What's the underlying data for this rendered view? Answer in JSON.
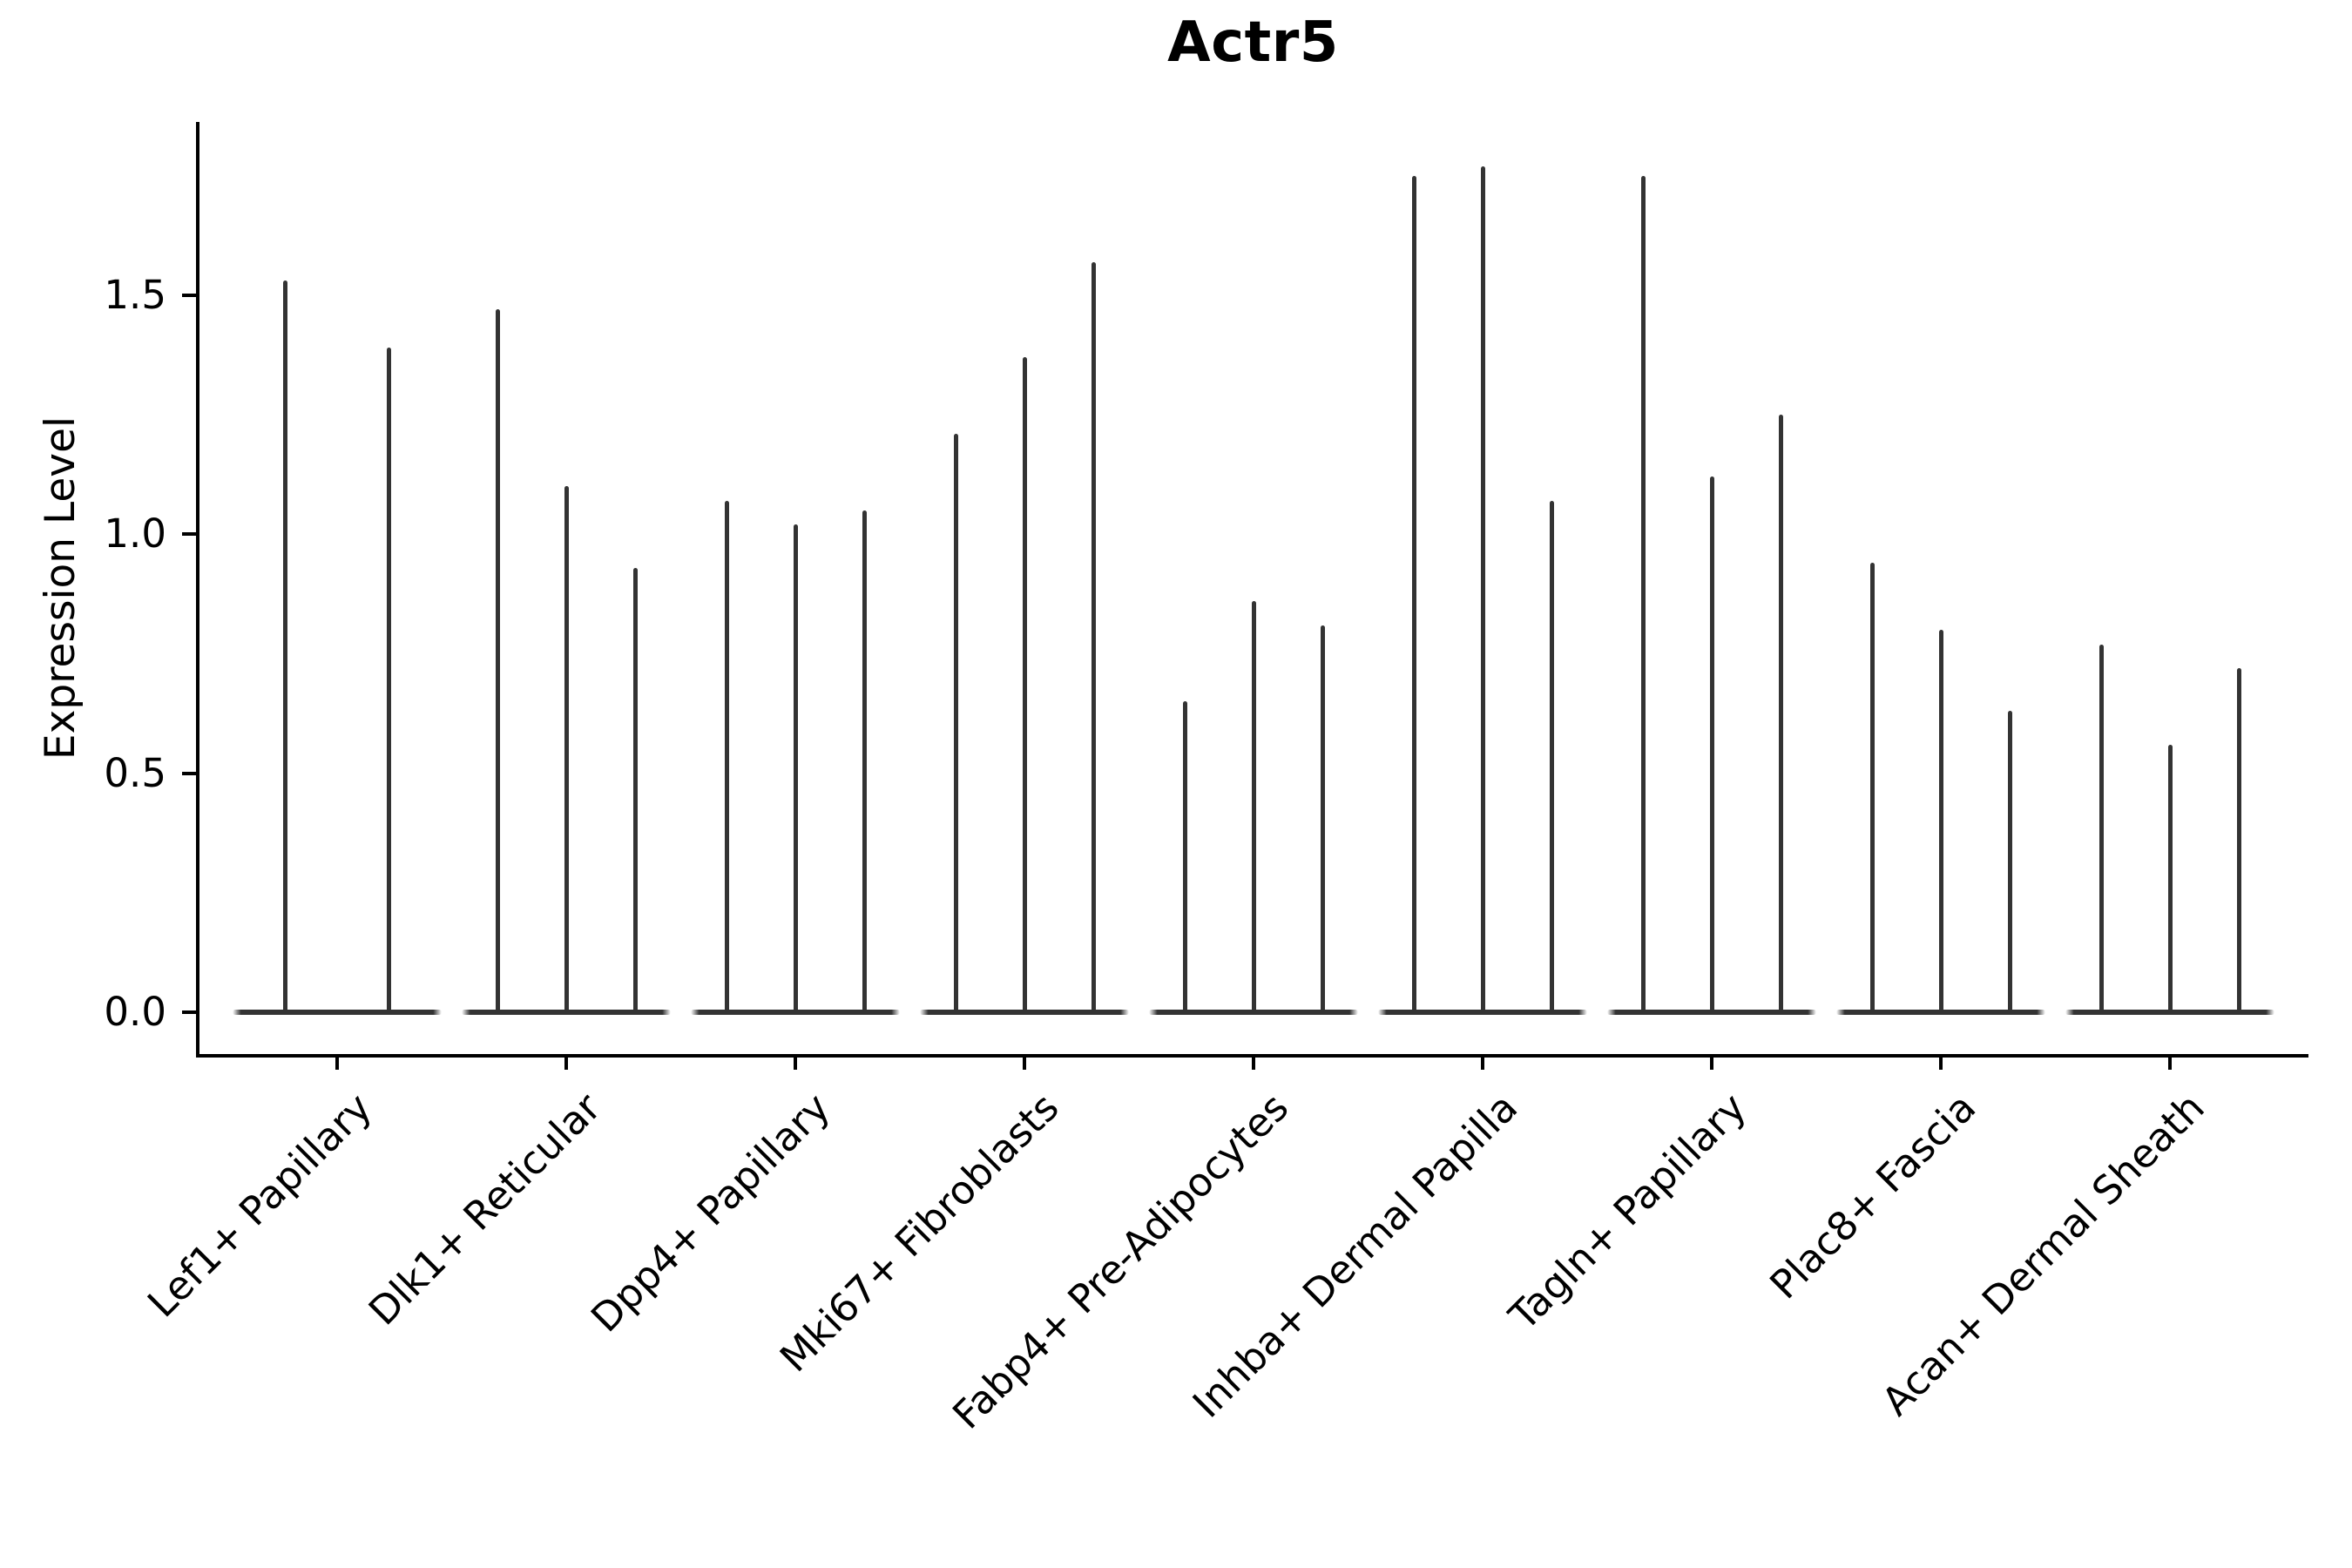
{
  "chart_data": {
    "type": "violin",
    "title": "Actr5",
    "ylabel": "Expression Level",
    "xlabel": "",
    "ylim": [
      0,
      1.86
    ],
    "grid": false,
    "legend_position": "none",
    "yticks": [
      {
        "value": 0.0,
        "label": "0.0"
      },
      {
        "value": 0.5,
        "label": "0.5"
      },
      {
        "value": 1.0,
        "label": "1.0"
      },
      {
        "value": 1.5,
        "label": "1.5"
      }
    ],
    "categories": [
      "Lef1+ Papillary",
      "Dlk1+ Reticular",
      "Dpp4+ Papillary",
      "Mki67+ Fibroblasts",
      "Fabp4+ Pre-Adipocytes",
      "Inhba+ Dermal Papilla",
      "Tagln+ Papillary",
      "Plac8+ Fascia",
      "Acan+ Dermal Sheath"
    ],
    "groups": [
      {
        "category": "Lef1+ Papillary",
        "spike_heights": [
          1.53,
          1.39
        ]
      },
      {
        "category": "Dlk1+ Reticular",
        "spike_heights": [
          1.47,
          1.1,
          0.93
        ]
      },
      {
        "category": "Dpp4+ Papillary",
        "spike_heights": [
          1.07,
          1.02,
          1.05
        ]
      },
      {
        "category": "Mki67+ Fibroblasts",
        "spike_heights": [
          1.21,
          1.37,
          1.57
        ]
      },
      {
        "category": "Fabp4+ Pre-Adipocytes",
        "spike_heights": [
          0.65,
          0.86,
          0.81
        ]
      },
      {
        "category": "Inhba+ Dermal Papilla",
        "spike_heights": [
          1.75,
          1.77,
          1.07
        ]
      },
      {
        "category": "Tagln+ Papillary",
        "spike_heights": [
          1.75,
          1.12,
          1.25
        ]
      },
      {
        "category": "Plac8+ Fascia",
        "spike_heights": [
          0.94,
          0.8,
          0.63
        ]
      },
      {
        "category": "Acan+ Dermal Sheath",
        "spike_heights": [
          0.77,
          0.56,
          0.72
        ]
      }
    ],
    "colors": {
      "violin": "#333333",
      "axis": "#000000",
      "text": "#000000",
      "background": "#ffffff"
    }
  }
}
